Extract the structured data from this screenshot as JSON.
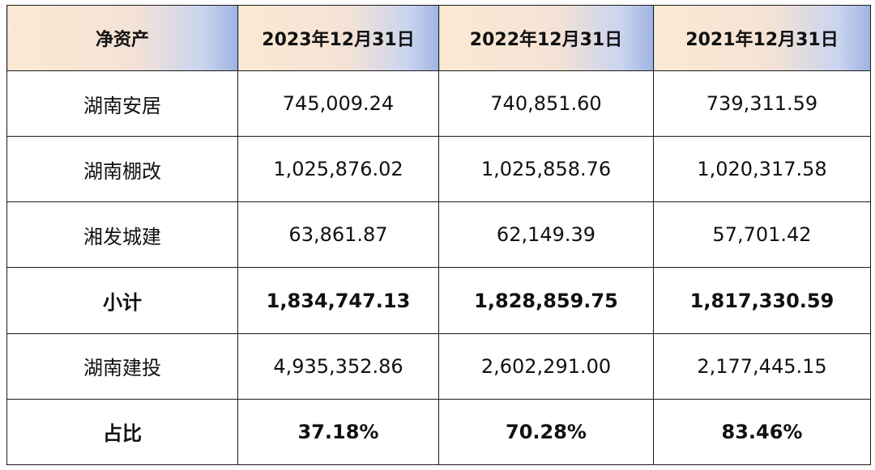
{
  "table": {
    "headers": [
      "净资产",
      "2023年12月31日",
      "2022年12月31日",
      "2021年12月31日"
    ],
    "rows": [
      {
        "cells": [
          "湖南安居",
          "745,009.24",
          "740,851.60",
          "739,311.59"
        ],
        "bold": false
      },
      {
        "cells": [
          "湖南棚改",
          "1,025,876.02",
          "1,025,858.76",
          "1,020,317.58"
        ],
        "bold": false
      },
      {
        "cells": [
          "湘发城建",
          "63,861.87",
          "62,149.39",
          "57,701.42"
        ],
        "bold": false
      },
      {
        "cells": [
          "小计",
          "1,834,747.13",
          "1,828,859.75",
          "1,817,330.59"
        ],
        "bold": true
      },
      {
        "cells": [
          "湖南建投",
          "4,935,352.86",
          "2,602,291.00",
          "2,177,445.15"
        ],
        "bold": false
      },
      {
        "cells": [
          "占比",
          "37.18%",
          "70.28%",
          "83.46%"
        ],
        "bold": true
      }
    ]
  }
}
